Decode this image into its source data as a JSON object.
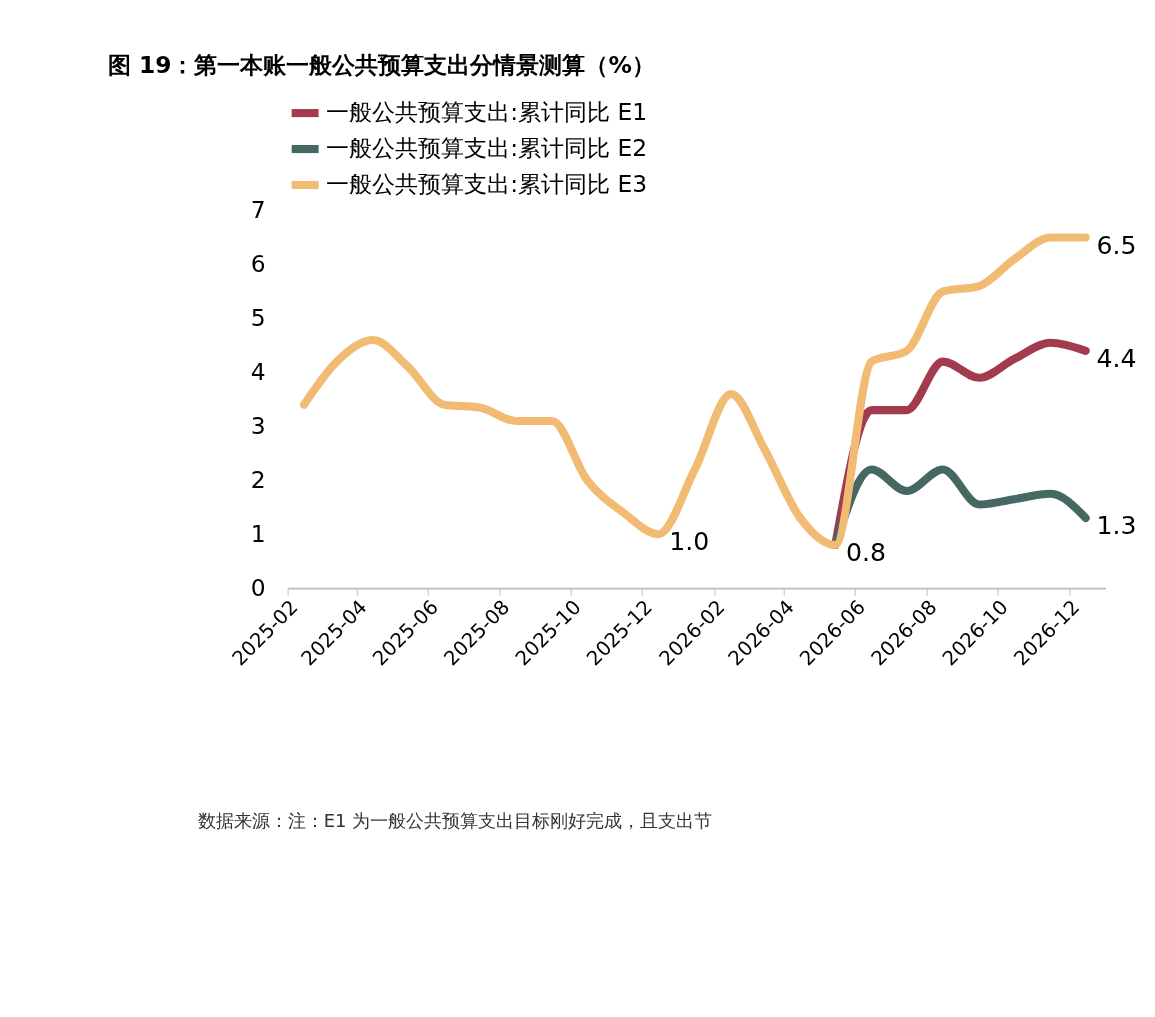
{
  "chart_data": {
    "type": "line",
    "title": "图 19：第一本账一般公共预算支出分情景测算（%）",
    "x": [
      "2025-02-15",
      "2025-03-15",
      "2025-04-15",
      "2025-05-15",
      "2025-06-15",
      "2025-07-15",
      "2025-08-15",
      "2025-09-15",
      "2025-10-15",
      "2025-11-15",
      "2025-12-15",
      "2026-01-15",
      "2026-02-15",
      "2026-03-15",
      "2026-04-15",
      "2026-05-15",
      "2026-06-15",
      "2026-07-15",
      "2026-08-15",
      "2026-09-15",
      "2026-10-15",
      "2026-11-15",
      "2026-12-15"
    ],
    "series": [
      {
        "name": "一般公共预算支出:累计同比 E1",
        "color": "#a33b4e",
        "values": [
          null,
          null,
          null,
          null,
          null,
          null,
          null,
          null,
          null,
          null,
          null,
          null,
          null,
          null,
          null,
          0.8,
          3.3,
          3.3,
          4.2,
          3.9,
          4.25,
          4.55,
          4.4
        ],
        "value_labels": [
          null,
          null,
          null,
          null,
          null,
          null,
          null,
          null,
          null,
          null,
          null,
          null,
          null,
          null,
          null,
          null,
          null,
          null,
          null,
          null,
          null,
          null,
          "4.4"
        ]
      },
      {
        "name": "一般公共预算支出:累计同比 E2",
        "color": "#456862",
        "values": [
          null,
          null,
          null,
          null,
          null,
          null,
          null,
          null,
          null,
          null,
          null,
          null,
          null,
          null,
          null,
          0.8,
          2.2,
          1.8,
          2.2,
          1.55,
          1.65,
          1.75,
          1.3
        ],
        "value_labels": [
          null,
          null,
          null,
          null,
          null,
          null,
          null,
          null,
          null,
          null,
          null,
          null,
          null,
          null,
          null,
          null,
          null,
          null,
          null,
          null,
          null,
          null,
          "1.3"
        ]
      },
      {
        "name": "一般公共预算支出:累计同比 E3",
        "color": "#f2bb73",
        "values": [
          3.4,
          4.2,
          4.6,
          4.1,
          3.4,
          3.35,
          3.1,
          3.1,
          2.0,
          1.4,
          1.0,
          2.2,
          3.6,
          2.6,
          1.3,
          0.8,
          4.2,
          4.4,
          5.5,
          5.6,
          6.1,
          6.5,
          6.5
        ],
        "value_labels": [
          null,
          null,
          null,
          null,
          null,
          null,
          null,
          null,
          null,
          null,
          "1.0",
          null,
          null,
          null,
          null,
          "0.8",
          null,
          null,
          null,
          null,
          null,
          null,
          "6.5"
        ]
      }
    ],
    "xlim": [
      "2025-02-01",
      "2027-01-01"
    ],
    "xticks": [
      "2025-02",
      "2025-04",
      "2025-06",
      "2025-08",
      "2025-10",
      "2025-12",
      "2026-02",
      "2026-04",
      "2026-06",
      "2026-08",
      "2026-10",
      "2026-12"
    ],
    "ylim": [
      0,
      7
    ],
    "yticks": [
      0,
      1,
      2,
      3,
      4,
      5,
      6,
      7
    ],
    "grid": false,
    "legend": "top",
    "marker": "none",
    "line_style": "solid",
    "annotations": [
      "数据来源：注：E1 为一般公共预算支出目标刚好完成，且支出节"
    ]
  }
}
